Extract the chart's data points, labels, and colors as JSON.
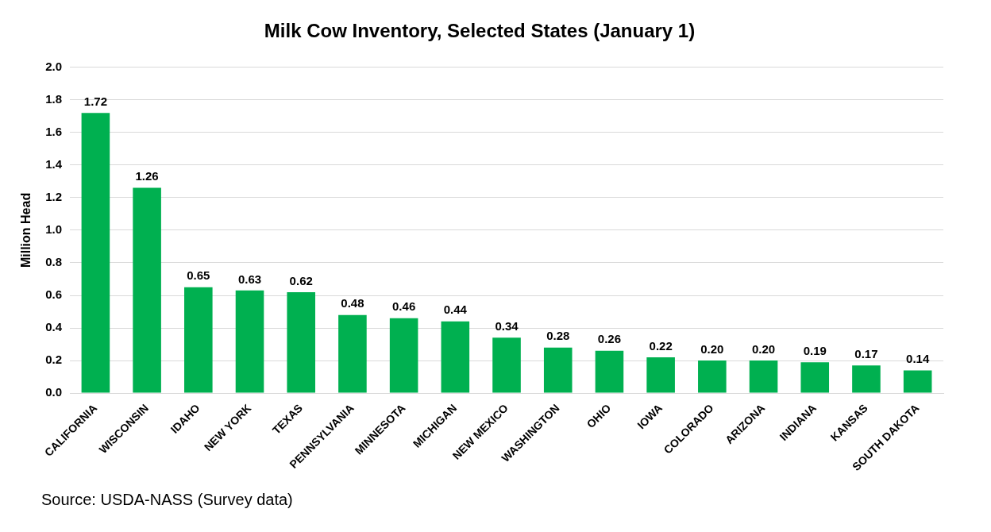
{
  "chart_data": {
    "type": "bar",
    "title": "Milk Cow Inventory, Selected States (January 1)",
    "ylabel": "Million Head",
    "categories": [
      "CALIFORNIA",
      "WISCONSIN",
      "IDAHO",
      "NEW YORK",
      "TEXAS",
      "PENNSYLVANIA",
      "MINNESOTA",
      "MICHIGAN",
      "NEW MEXICO",
      "WASHINGTON",
      "OHIO",
      "IOWA",
      "COLORADO",
      "ARIZONA",
      "INDIANA",
      "KANSAS",
      "SOUTH DAKOTA"
    ],
    "values": [
      1.72,
      1.26,
      0.65,
      0.63,
      0.62,
      0.48,
      0.46,
      0.44,
      0.34,
      0.28,
      0.26,
      0.22,
      0.2,
      0.2,
      0.19,
      0.17,
      0.14
    ],
    "value_labels": [
      "1.72",
      "1.26",
      "0.65",
      "0.63",
      "0.62",
      "0.48",
      "0.46",
      "0.44",
      "0.34",
      "0.28",
      "0.26",
      "0.22",
      "0.20",
      "0.20",
      "0.19",
      "0.17",
      "0.14"
    ],
    "color": "#00b050",
    "ylim": [
      0,
      2
    ],
    "yticks": [
      "0.0",
      "0.2",
      "0.4",
      "0.6",
      "0.8",
      "1.0",
      "1.2",
      "1.4",
      "1.6",
      "1.8",
      "2.0"
    ],
    "grid": "y",
    "annotations": [
      "Source: USDA-NASS (Survey data)"
    ]
  }
}
